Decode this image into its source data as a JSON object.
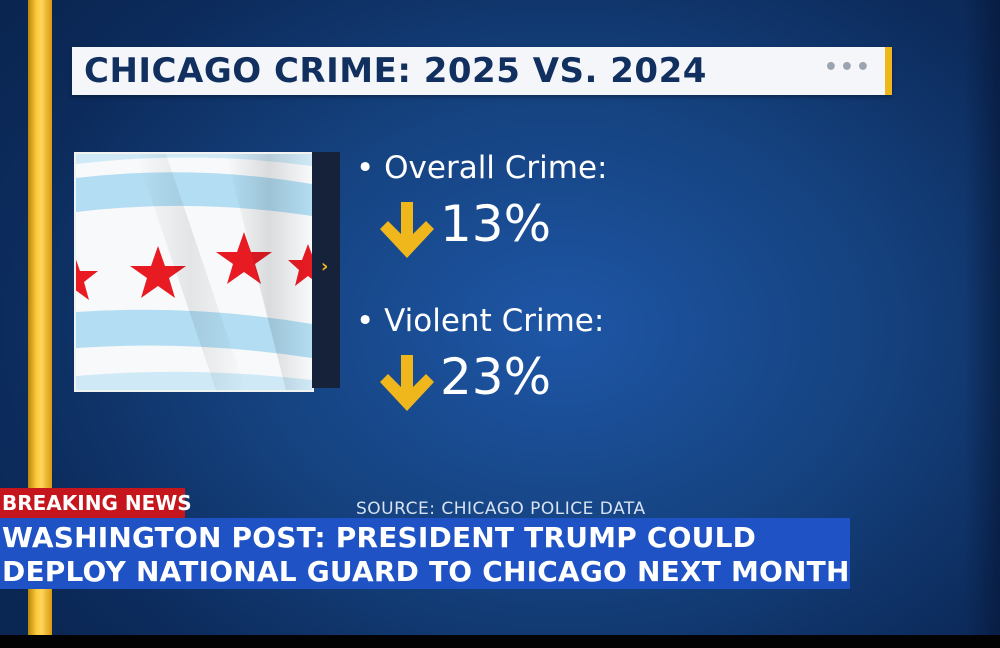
{
  "graphic": {
    "title": "CHICAGO CRIME: 2025 VS. 2024",
    "menu_icon": "ellipsis-icon",
    "flag_icon": "chicago-flag-image",
    "stats": [
      {
        "label": "• Overall Crime:",
        "direction": "down",
        "value": "13%"
      },
      {
        "label": "• Violent Crime:",
        "direction": "down",
        "value": "23%"
      }
    ],
    "source": "SOURCE: CHICAGO POLICE DATA"
  },
  "ticker": {
    "tag": "BREAKING NEWS",
    "line1": "WASHINGTON POST: PRESIDENT TRUMP COULD",
    "line2": "DEPLOY NATIONAL GUARD TO CHICAGO NEXT MONTH"
  },
  "colors": {
    "background": "#15427f",
    "accent_gold": "#f0b71c",
    "title_text": "#11305f",
    "breaking_red": "#c4161c",
    "headline_blue": "#1f52c4",
    "flag_blue": "#b3ddf2",
    "flag_red": "#e81b23"
  }
}
